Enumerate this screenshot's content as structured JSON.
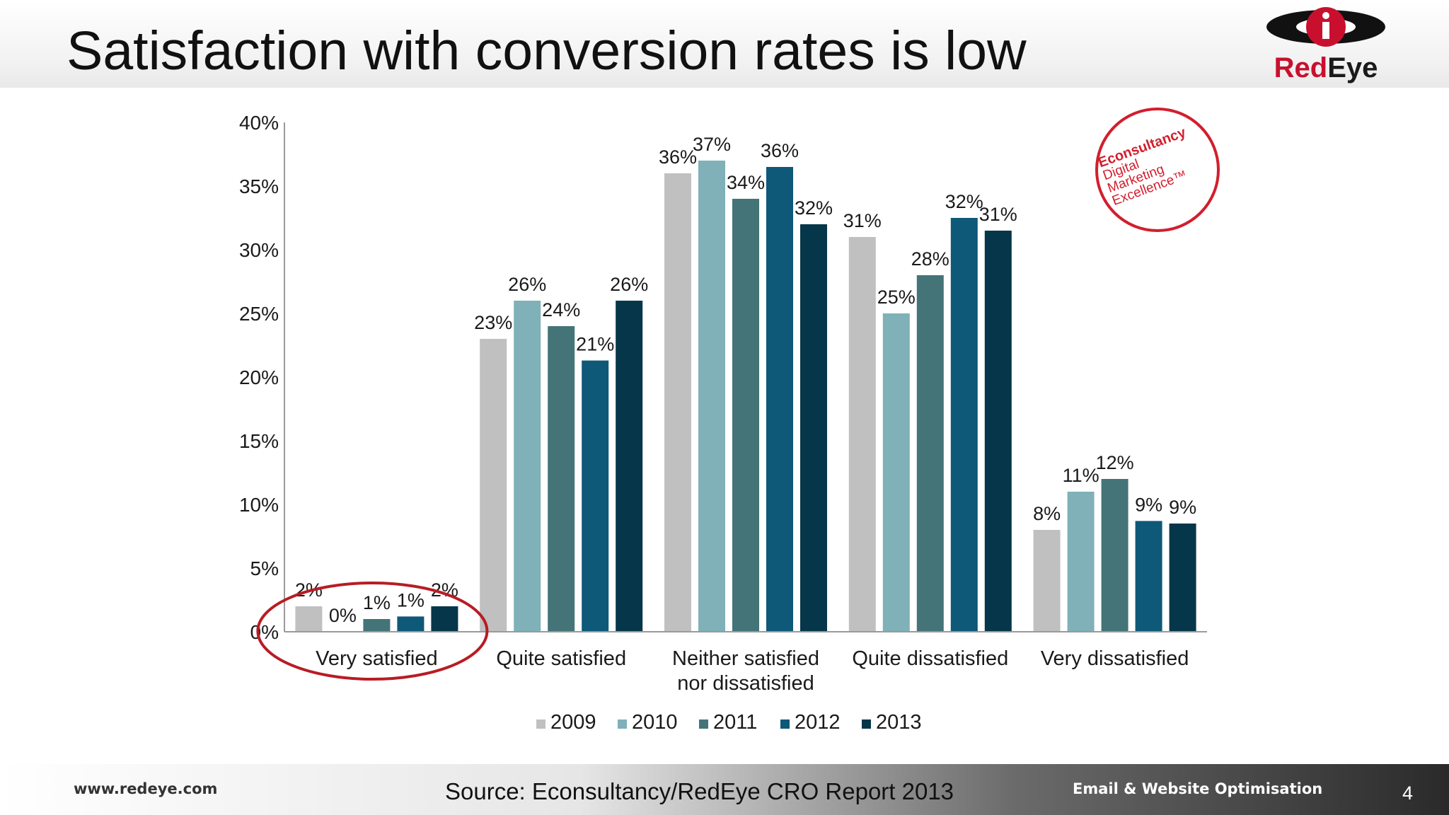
{
  "slide": {
    "title": "Satisfaction with conversion rates is low",
    "logo_text_red": "Red",
    "logo_text_dark": "Eye",
    "stamp": {
      "brand": "Econsultancy",
      "line1": "Digital",
      "line2": "Marketing",
      "line3": "Excellence™"
    },
    "footer": {
      "url": "www.redeye.com",
      "source": "Source: Econsultancy/RedEye CRO Report 2013",
      "tagline": "Email & Website Optimisation",
      "page_number": "4"
    }
  },
  "colors": {
    "series": [
      "#c0c0c0",
      "#80b0b8",
      "#447478",
      "#0e5878",
      "#06364a"
    ],
    "highlight_ring": "#b81c24",
    "axis": "#9a9a9a",
    "text": "#1a1a1a"
  },
  "chart_data": {
    "type": "bar",
    "categories": [
      "Very satisfied",
      "Quite satisfied",
      "Neither satisfied nor dissatisfied",
      "Quite dissatisfied",
      "Very dissatisfied"
    ],
    "category_lines": [
      [
        "Very satisfied"
      ],
      [
        "Quite satisfied"
      ],
      [
        "Neither satisfied",
        "nor dissatisfied"
      ],
      [
        "Quite dissatisfied"
      ],
      [
        "Very dissatisfied"
      ]
    ],
    "series": [
      {
        "name": "2009",
        "values": [
          2,
          23,
          36,
          31,
          8
        ]
      },
      {
        "name": "2010",
        "values": [
          0,
          26,
          37,
          25,
          11
        ]
      },
      {
        "name": "2011",
        "values": [
          1,
          24,
          34,
          28,
          12
        ]
      },
      {
        "name": "2012",
        "values": [
          1,
          21,
          36,
          32,
          9
        ]
      },
      {
        "name": "2013",
        "values": [
          2,
          26,
          32,
          31,
          9
        ]
      }
    ],
    "bar_heights_percent": [
      [
        2.0,
        23.0,
        36.0,
        31.0,
        8.0
      ],
      [
        0.0,
        26.0,
        37.0,
        25.0,
        11.0
      ],
      [
        1.0,
        24.0,
        34.0,
        28.0,
        12.0
      ],
      [
        1.2,
        21.3,
        36.5,
        32.5,
        8.7
      ],
      [
        2.0,
        26.0,
        32.0,
        31.5,
        8.5
      ]
    ],
    "ylim": [
      0,
      40
    ],
    "yticks": [
      0,
      5,
      10,
      15,
      20,
      25,
      30,
      35,
      40
    ],
    "ytick_labels": [
      "0%",
      "5%",
      "10%",
      "15%",
      "20%",
      "25%",
      "30%",
      "35%",
      "40%"
    ],
    "value_suffix": "%",
    "xlabel": "",
    "ylabel": "",
    "legend_position": "bottom",
    "grid": false,
    "highlighted_category": "Very satisfied"
  }
}
